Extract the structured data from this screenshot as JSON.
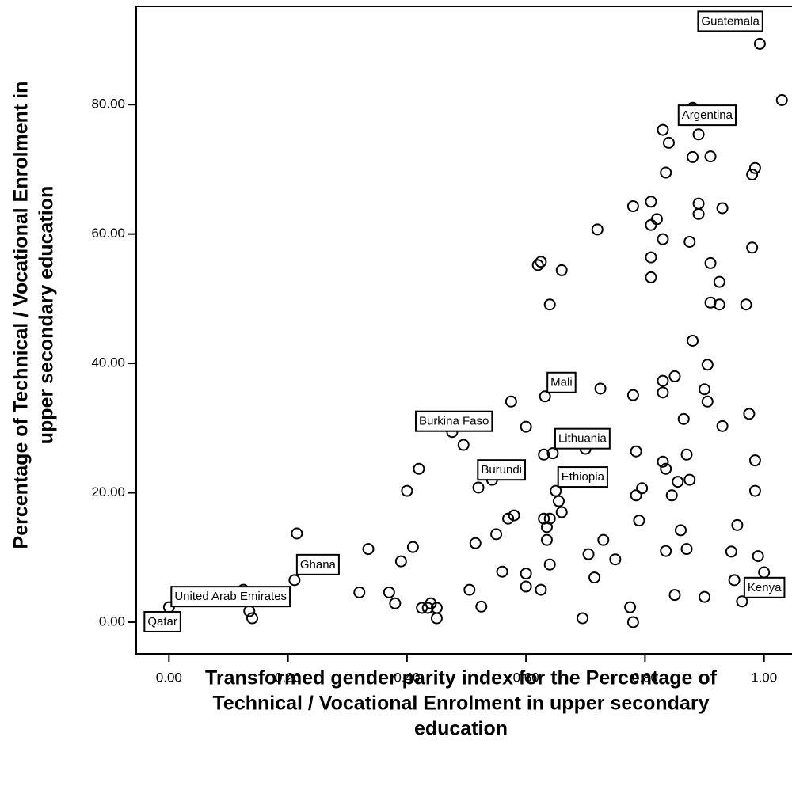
{
  "chart_data": {
    "type": "scatter",
    "xlabel": [
      "Transformed gender parity index for the Percentage of",
      "Technical / Vocational Enrolment in upper secondary",
      "education"
    ],
    "ylabel": [
      "Percentage of Technical / Vocational Enrolment in",
      "upper secondary education"
    ],
    "xlim": [
      -0.055,
      1.047
    ],
    "ylim": [
      -4.9,
      95.2
    ],
    "xticks": [
      {
        "value": 0,
        "label": "0.00"
      },
      {
        "value": 0.2,
        "label": "0.20"
      },
      {
        "value": 0.4,
        "label": "0.40"
      },
      {
        "value": 0.6,
        "label": "0.60"
      },
      {
        "value": 0.8,
        "label": "0.80"
      },
      {
        "value": 1,
        "label": "1.00"
      }
    ],
    "yticks": [
      {
        "value": 0,
        "label": "0.00"
      },
      {
        "value": 20,
        "label": "20.00"
      },
      {
        "value": 40,
        "label": "40.00"
      },
      {
        "value": 60,
        "label": "60.00"
      },
      {
        "value": 80,
        "label": "80.00"
      }
    ],
    "color": "#000000",
    "x": [
      1.03,
      0.88,
      0.83,
      0.89,
      0.84,
      0.91,
      0.88,
      0.985,
      0.98,
      0.835,
      0.81,
      0.89,
      0.78,
      0.93,
      0.89,
      0.82,
      0.81,
      0.72,
      0.83,
      0.875,
      0.98,
      0.81,
      0.91,
      0.625,
      0.62,
      0.66,
      0.81,
      0.925,
      0.91,
      0.925,
      0.97,
      0.64,
      0.88,
      0.905,
      0.85,
      0.83,
      0.725,
      0.9,
      0.83,
      0.78,
      0.905,
      0.575,
      0.865,
      0.975,
      0.6,
      0.93,
      0.495,
      0.7,
      0.785,
      0.63,
      0.87,
      0.985,
      0.83,
      0.835,
      0.42,
      0.875,
      0.855,
      0.795,
      0.52,
      0.845,
      0.4,
      0.785,
      0.985,
      0.655,
      0.58,
      0.57,
      0.63,
      0.64,
      0.66,
      0.79,
      0.955,
      0.635,
      0.86,
      0.215,
      0.55,
      0.73,
      0.635,
      0.515,
      0.41,
      0.335,
      0.87,
      0.835,
      0.945,
      0.705,
      0.99,
      0.39,
      0.75,
      0.64,
      0.56,
      0.6,
      1.0,
      0.715,
      0.95,
      0.6,
      0.625,
      0.505,
      0.32,
      0.37,
      0.85,
      0.9,
      0.38,
      0.525,
      0.44,
      0.425,
      0.435,
      0.45,
      0.775,
      0.135,
      0.14,
      0.45,
      0.695,
      0.78,
      0.125
    ],
    "y": [
      80.7,
      79.5,
      76.1,
      75.4,
      74.1,
      72.0,
      71.9,
      70.2,
      69.2,
      69.5,
      65.0,
      64.7,
      64.3,
      64.0,
      63.1,
      62.3,
      61.4,
      60.7,
      59.2,
      58.8,
      57.9,
      56.4,
      55.5,
      55.7,
      55.2,
      54.4,
      53.3,
      52.6,
      49.4,
      49.1,
      49.1,
      49.1,
      43.5,
      39.8,
      38.0,
      37.3,
      36.1,
      36.0,
      35.5,
      35.1,
      34.1,
      34.1,
      31.4,
      32.2,
      30.2,
      30.3,
      27.4,
      26.8,
      26.4,
      25.9,
      25.9,
      25.0,
      24.8,
      23.7,
      23.7,
      22.0,
      21.7,
      20.7,
      20.8,
      19.6,
      20.3,
      19.6,
      20.3,
      18.7,
      16.5,
      16.0,
      16.0,
      16.0,
      17.0,
      15.7,
      15.0,
      14.7,
      14.2,
      13.7,
      13.6,
      12.7,
      12.7,
      12.2,
      11.6,
      11.3,
      11.3,
      11.0,
      10.9,
      10.5,
      10.2,
      9.4,
      9.7,
      8.9,
      7.8,
      7.5,
      7.7,
      6.9,
      6.5,
      5.5,
      5.0,
      5.0,
      4.6,
      4.6,
      4.2,
      3.9,
      2.9,
      2.4,
      2.9,
      2.2,
      2.2,
      2.2,
      2.3,
      1.7,
      0.6,
      0.6,
      0.6,
      0.0,
      5.0
    ],
    "annotations": [
      {
        "text": "Guatemala",
        "x": 0.993,
        "y": 89.4
      },
      {
        "text": "Argentina",
        "x": 0.879,
        "y": 79.4
      },
      {
        "text": "Mali",
        "x": 0.632,
        "y": 34.9
      },
      {
        "text": "Burkina Faso",
        "x": 0.476,
        "y": 29.4
      },
      {
        "text": "Lithuania",
        "x": 0.645,
        "y": 26.1
      },
      {
        "text": "Burundi",
        "x": 0.543,
        "y": 22.0
      },
      {
        "text": "Ethiopia",
        "x": 0.65,
        "y": 20.3
      },
      {
        "text": "Ghana",
        "x": 0.211,
        "y": 6.5
      },
      {
        "text": "United Arab Emirates",
        "x": 0.0,
        "y": 2.3
      },
      {
        "text": "Qatar",
        "x": 0.0,
        "y": 0.0
      },
      {
        "text": "Kenya",
        "x": 0.963,
        "y": 3.2
      }
    ]
  }
}
